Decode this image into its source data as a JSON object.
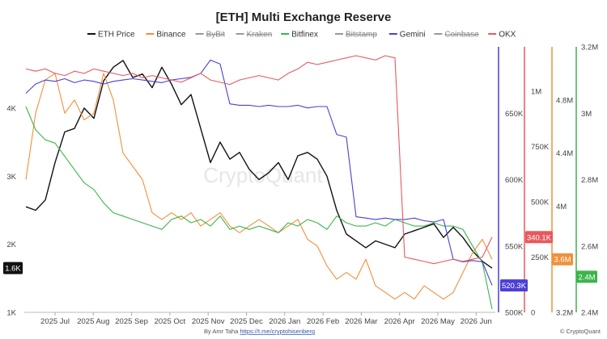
{
  "chart_data": {
    "type": "line",
    "title": "[ETH] Multi Exchange Reserve",
    "watermark": "CryptoQuant",
    "credit": {
      "author_prefix": "By Amr Taha ",
      "author_link": "https://t.me/cryptohisenberg",
      "copyright": "© CryptoQuant"
    },
    "legend": [
      {
        "name": "ETH Price",
        "color": "#111111",
        "enabled": true
      },
      {
        "name": "Binance",
        "color": "#f0913a",
        "enabled": true
      },
      {
        "name": "ByBit",
        "color": "#999999",
        "enabled": false
      },
      {
        "name": "Kraken",
        "color": "#999999",
        "enabled": false
      },
      {
        "name": "Bitfinex",
        "color": "#3cb44b",
        "enabled": true
      },
      {
        "name": "Bitstamp",
        "color": "#999999",
        "enabled": false
      },
      {
        "name": "Gemini",
        "color": "#4b3fd6",
        "enabled": true
      },
      {
        "name": "Coinbase",
        "color": "#999999",
        "enabled": false
      },
      {
        "name": "OKX",
        "color": "#e8585e",
        "enabled": true
      }
    ],
    "x_ticks": [
      "2025 Jul",
      "2025 Aug",
      "2025 Sep",
      "2025 Oct",
      "2025 Nov",
      "2025 Dec",
      "2026 Jan",
      "2026 Feb",
      "2026 Mar",
      "2026 Apr",
      "2026 May",
      "2026 Jun"
    ],
    "axes": {
      "price": {
        "ticks": [
          "1K",
          "2K",
          "3K",
          "4K"
        ],
        "range": [
          1000,
          4900
        ],
        "color": "#111111",
        "current_label": "1.6K"
      },
      "gemini": {
        "ticks": [
          "500K",
          "550K",
          "600K",
          "650K"
        ],
        "range": [
          500000,
          700000
        ],
        "color": "#4b3fd6",
        "current_label": "520.3K"
      },
      "okx": {
        "ticks": [
          "0",
          "250K",
          "500K",
          "750K",
          "1M"
        ],
        "range": [
          0,
          1200000
        ],
        "color": "#e8585e",
        "current_label": "340.1K"
      },
      "binance": {
        "ticks": [
          "3.2M",
          "3.6M",
          "4M",
          "4.4M",
          "4.8M"
        ],
        "range": [
          3200000,
          5200000
        ],
        "color": "#f0913a",
        "current_label": "3.6M"
      },
      "bitfinex": {
        "ticks": [
          "2.4M",
          "2.6M",
          "2.8M",
          "3M",
          "3.2M"
        ],
        "range": [
          2400000,
          3200000
        ],
        "color": "#3cb44b",
        "current_label": "2.4M"
      }
    },
    "x_range": [
      0,
      48
    ],
    "series": [
      {
        "name": "ETH Price",
        "axis": "price",
        "color": "#111111",
        "x": [
          0,
          1,
          2,
          3,
          4,
          5,
          6,
          7,
          8,
          9,
          10,
          11,
          12,
          13,
          14,
          15,
          16,
          17,
          18,
          19,
          20,
          21,
          22,
          23,
          24,
          25,
          26,
          27,
          28,
          29,
          30,
          31,
          32,
          33,
          34,
          35,
          36,
          37,
          38,
          39,
          40,
          41,
          42,
          43,
          44,
          45,
          46,
          47,
          48
        ],
        "y": [
          2550,
          2500,
          2650,
          3200,
          3650,
          3700,
          4000,
          3850,
          4400,
          4600,
          4700,
          4450,
          4500,
          4300,
          4600,
          4350,
          4050,
          4200,
          3700,
          3200,
          3500,
          3250,
          3350,
          3100,
          2950,
          3050,
          3200,
          2950,
          3300,
          3350,
          3250,
          3000,
          2500,
          2150,
          2050,
          1950,
          2050,
          2000,
          1950,
          2150,
          2200,
          2250,
          2300,
          2100,
          2250,
          2100,
          1900,
          1750,
          1650
        ]
      },
      {
        "name": "Binance",
        "axis": "binance",
        "color": "#f0913a",
        "x": [
          0,
          1,
          2,
          3,
          4,
          5,
          6,
          7,
          8,
          9,
          10,
          11,
          12,
          13,
          14,
          15,
          16,
          17,
          18,
          19,
          20,
          21,
          22,
          23,
          24,
          25,
          26,
          27,
          28,
          29,
          30,
          31,
          32,
          33,
          34,
          35,
          36,
          37,
          38,
          39,
          40,
          41,
          42,
          43,
          44,
          45,
          46,
          47,
          48
        ],
        "y": [
          4200000,
          4700000,
          4950000,
          5000000,
          4700000,
          4800000,
          4650000,
          4700000,
          5000000,
          4800000,
          4400000,
          4300000,
          4200000,
          3950000,
          3900000,
          3950000,
          3900000,
          3950000,
          3850000,
          3900000,
          3950000,
          3850000,
          3800000,
          3850000,
          3900000,
          3850000,
          3800000,
          3850000,
          3900000,
          3750000,
          3700000,
          3550000,
          3450000,
          3500000,
          3450000,
          3600000,
          3400000,
          3350000,
          3300000,
          3350000,
          3300000,
          3400000,
          3350000,
          3300000,
          3350000,
          3500000,
          3650000,
          3750000,
          3600000
        ]
      },
      {
        "name": "Bitfinex",
        "axis": "bitfinex",
        "color": "#3cb44b",
        "x": [
          0,
          1,
          2,
          3,
          4,
          5,
          6,
          7,
          8,
          9,
          10,
          11,
          12,
          13,
          14,
          15,
          16,
          17,
          18,
          19,
          20,
          21,
          22,
          23,
          24,
          25,
          26,
          27,
          28,
          29,
          30,
          31,
          32,
          33,
          34,
          35,
          36,
          37,
          38,
          39,
          40,
          41,
          42,
          43,
          44,
          45,
          46,
          47,
          48
        ],
        "y": [
          3020000,
          2950000,
          2920000,
          2910000,
          2870000,
          2830000,
          2790000,
          2770000,
          2730000,
          2700000,
          2690000,
          2680000,
          2670000,
          2660000,
          2650000,
          2680000,
          2690000,
          2670000,
          2680000,
          2660000,
          2690000,
          2650000,
          2660000,
          2650000,
          2660000,
          2650000,
          2640000,
          2670000,
          2660000,
          2680000,
          2670000,
          2650000,
          2690000,
          2670000,
          2660000,
          2660000,
          2670000,
          2660000,
          2680000,
          2670000,
          2660000,
          2660000,
          2670000,
          2660000,
          2660000,
          2650000,
          2600000,
          2550000,
          2410000
        ]
      },
      {
        "name": "Gemini",
        "axis": "gemini",
        "color": "#4b3fd6",
        "x": [
          0,
          1,
          2,
          3,
          4,
          5,
          6,
          7,
          8,
          9,
          10,
          11,
          12,
          13,
          14,
          15,
          16,
          17,
          18,
          19,
          20,
          21,
          22,
          23,
          24,
          25,
          26,
          27,
          28,
          29,
          30,
          31,
          32,
          33,
          34,
          35,
          36,
          37,
          38,
          39,
          40,
          41,
          42,
          43,
          44,
          45,
          46,
          47,
          48
        ],
        "y": [
          665000,
          672000,
          675000,
          674000,
          676000,
          673000,
          675000,
          674000,
          672000,
          674000,
          675000,
          676000,
          675000,
          674000,
          673000,
          675000,
          676000,
          677000,
          680000,
          690000,
          687000,
          657000,
          656000,
          656000,
          655000,
          656000,
          655000,
          655000,
          656000,
          654000,
          655000,
          655000,
          634000,
          632000,
          572000,
          571000,
          570000,
          571000,
          570000,
          570000,
          571000,
          569000,
          568000,
          570000,
          540000,
          538000,
          539000,
          538000,
          520300
        ]
      },
      {
        "name": "OKX",
        "axis": "okx",
        "color": "#e8585e",
        "x": [
          0,
          1,
          2,
          3,
          4,
          5,
          6,
          7,
          8,
          9,
          10,
          11,
          12,
          13,
          14,
          15,
          16,
          17,
          18,
          19,
          20,
          21,
          22,
          23,
          24,
          25,
          26,
          27,
          28,
          29,
          30,
          31,
          32,
          33,
          34,
          35,
          36,
          37,
          38,
          39,
          40,
          41,
          42,
          43,
          44,
          45,
          46,
          47,
          48
        ],
        "y": [
          1100000,
          1090000,
          1100000,
          1080000,
          1070000,
          1090000,
          1080000,
          1100000,
          1090000,
          1080000,
          1070000,
          1080000,
          1060000,
          1070000,
          1060000,
          1050000,
          1040000,
          1060000,
          1080000,
          1050000,
          1040000,
          1030000,
          1050000,
          1060000,
          1070000,
          1060000,
          1050000,
          1080000,
          1100000,
          1130000,
          1120000,
          1130000,
          1140000,
          1150000,
          1160000,
          1150000,
          1140000,
          1160000,
          1150000,
          250000,
          240000,
          230000,
          220000,
          230000,
          240000,
          230000,
          240000,
          250000,
          340100
        ]
      }
    ]
  }
}
